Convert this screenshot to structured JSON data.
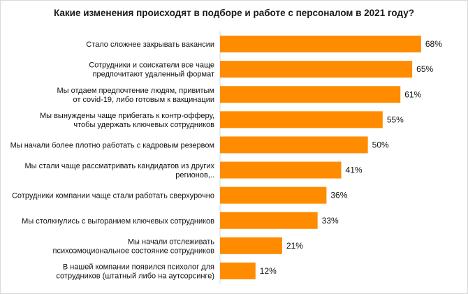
{
  "chart_data": {
    "type": "bar",
    "orientation": "horizontal",
    "title": "Какие изменения происходят в подборе и работе с персоналом в 2021 году?",
    "categories": [
      [
        "Стало сложнее закрывать вакансии"
      ],
      [
        "Сотрудники и  соискатели все чаще",
        "предпочитают удаленный формат"
      ],
      [
        "Мы отдаем предпочтение людям, привитым",
        "от covid-19, либо готовым к вакцинации"
      ],
      [
        "Мы вынуждены чаще прибегать к контр-офферу,",
        "чтобы удержать ключевых сотрудников"
      ],
      [
        "Мы начали более плотно работать с кадровым резервом"
      ],
      [
        "Мы стали чаще рассматривать кандидатов из других",
        "регионов,.."
      ],
      [
        "Сотрудники компании чаще стали работать сверхурочно"
      ],
      [
        "Мы столкнулись с выгоранием ключевых сотрудников"
      ],
      [
        "Мы начали отслеживать",
        "психоэмоциональное состояние сотрудников"
      ],
      [
        "В нашей компании появился психолог для",
        "сотрудников (штатный либо на аутсорсинге)"
      ]
    ],
    "values": [
      68,
      65,
      61,
      55,
      50,
      41,
      36,
      33,
      21,
      12
    ],
    "value_labels": [
      "68%",
      "65%",
      "61%",
      "55%",
      "50%",
      "41%",
      "36%",
      "33%",
      "21%",
      "12%"
    ],
    "bar_color": "#FF8C00",
    "xlim": [
      0,
      100
    ],
    "grid": false,
    "legend": "none"
  }
}
